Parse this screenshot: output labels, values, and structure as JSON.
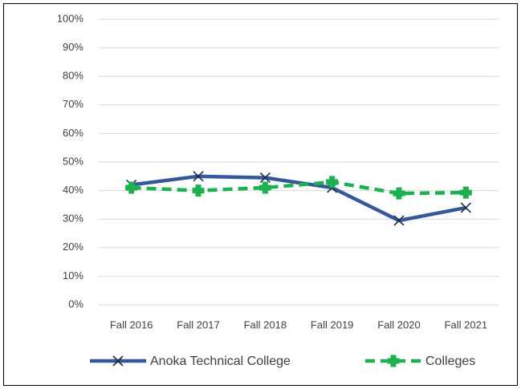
{
  "chart_data": {
    "type": "line",
    "categories": [
      "Fall 2016",
      "Fall 2017",
      "Fall 2018",
      "Fall 2019",
      "Fall 2020",
      "Fall 2021"
    ],
    "series": [
      {
        "name": "Anoka Technical College",
        "color": "#35589b",
        "values": [
          42,
          45,
          44.5,
          41,
          29.5,
          34
        ]
      },
      {
        "name": "Colleges",
        "color": "#1db04f",
        "values": [
          41,
          40,
          41,
          43,
          39,
          39.3
        ]
      }
    ],
    "ylim": [
      0,
      100
    ],
    "yticks": [
      {
        "value": 0,
        "label": "0%"
      },
      {
        "value": 10,
        "label": "10%"
      },
      {
        "value": 20,
        "label": "20%"
      },
      {
        "value": 30,
        "label": "30%"
      },
      {
        "value": 40,
        "label": "40%"
      },
      {
        "value": 50,
        "label": "50%"
      },
      {
        "value": 60,
        "label": "60%"
      },
      {
        "value": 70,
        "label": "70%"
      },
      {
        "value": 80,
        "label": "80%"
      },
      {
        "value": 90,
        "label": "90%"
      },
      {
        "value": 100,
        "label": "100%"
      }
    ],
    "grid": true
  }
}
